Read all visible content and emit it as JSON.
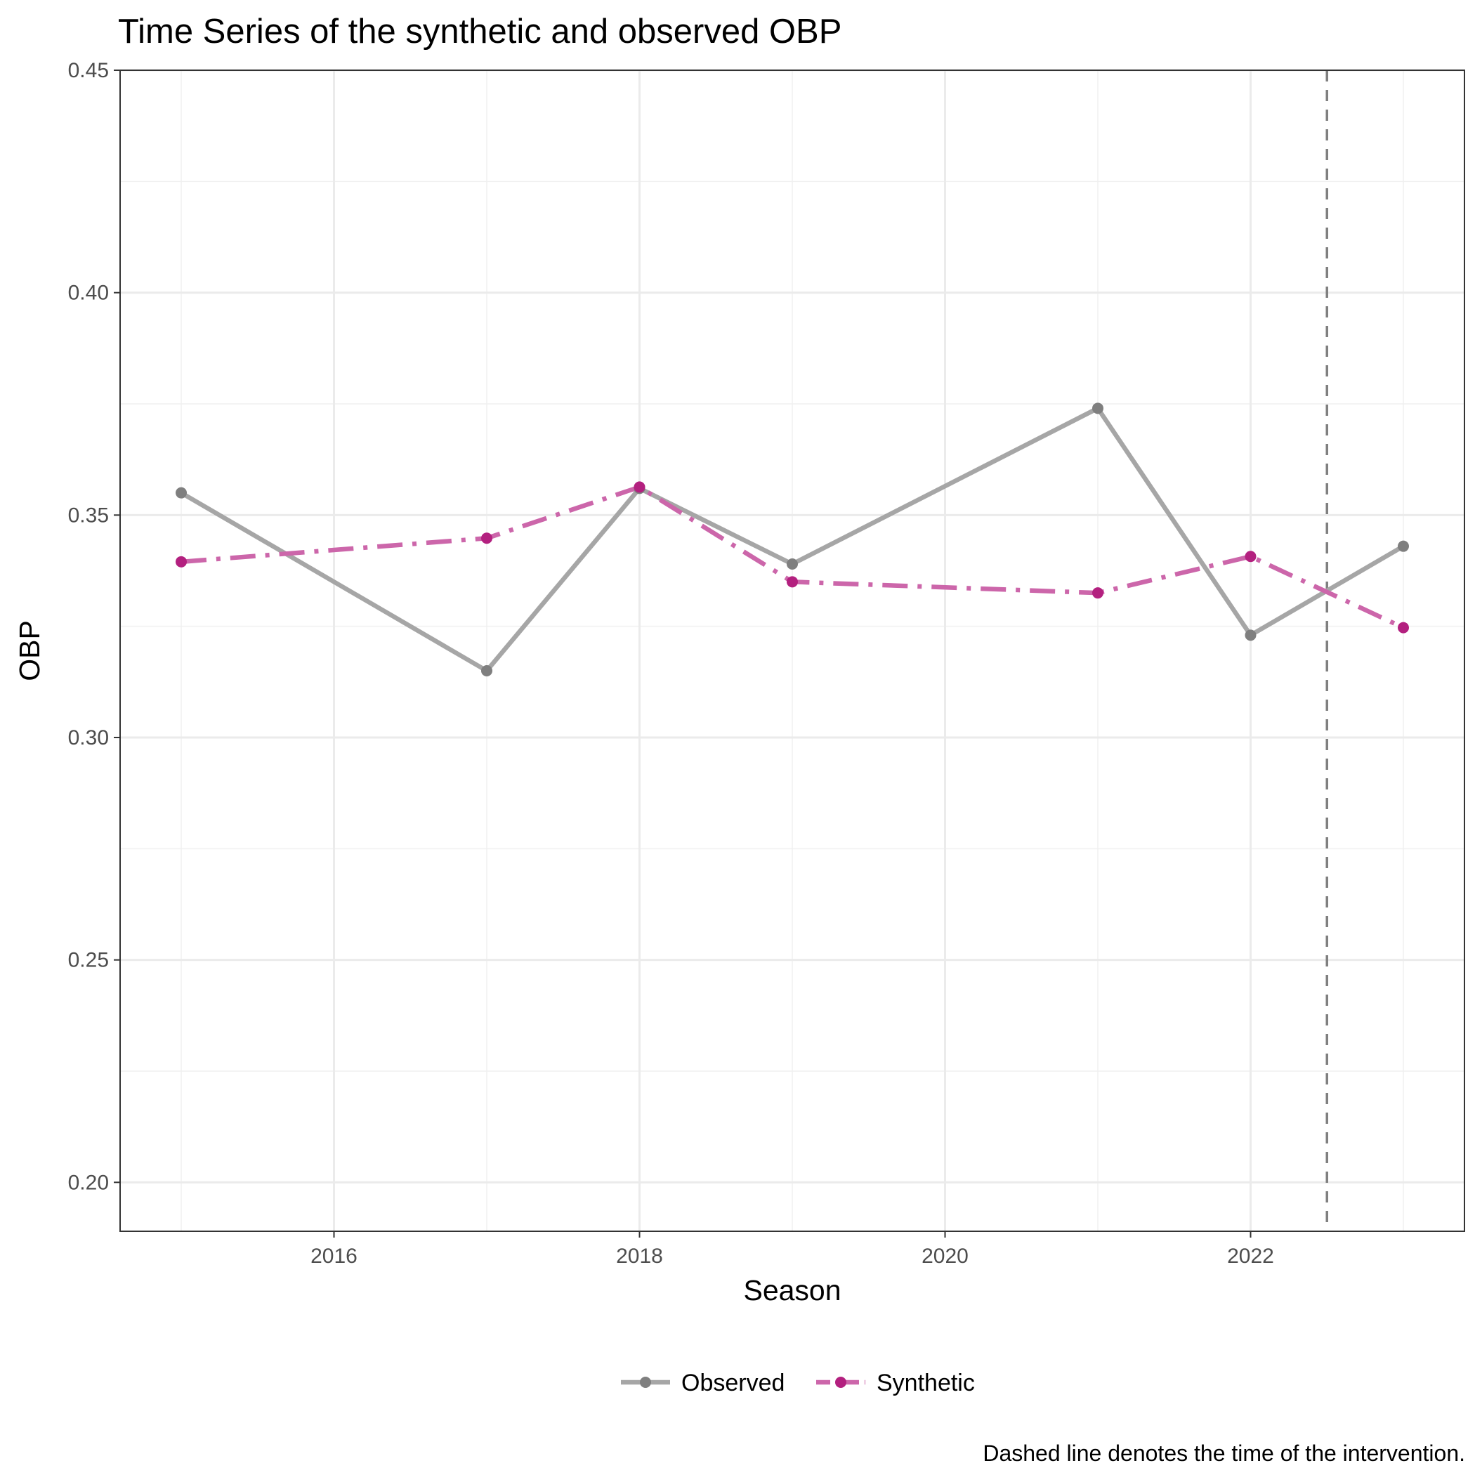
{
  "chart_data": {
    "type": "line",
    "title": "Time Series of the synthetic and observed OBP",
    "xlabel": "Season",
    "ylabel": "OBP",
    "caption": "Dashed line denotes the time of the intervention.",
    "x": [
      2015,
      2017,
      2018,
      2019,
      2021,
      2022,
      2023
    ],
    "xlim": [
      2014.6,
      2023.4
    ],
    "ylim": [
      0.189,
      0.45
    ],
    "x_ticks": [
      2016,
      2018,
      2020,
      2022
    ],
    "x_tick_labels": [
      "2016",
      "2018",
      "2020",
      "2022"
    ],
    "x_minor": [
      2015,
      2017,
      2019,
      2021,
      2023
    ],
    "y_ticks": [
      0.2,
      0.25,
      0.3,
      0.35,
      0.4,
      0.45
    ],
    "y_tick_labels": [
      "0.20",
      "0.25",
      "0.30",
      "0.35",
      "0.40",
      "0.45"
    ],
    "y_minor": [
      0.225,
      0.275,
      0.325,
      0.375,
      0.425
    ],
    "intervention_x": 2022.5,
    "grid": true,
    "legend_position": "bottom",
    "series": [
      {
        "name": "Observed",
        "values": [
          0.355,
          0.315,
          0.356,
          0.339,
          0.374,
          0.323,
          0.343
        ],
        "line_color": "#a6a6a6",
        "point_color": "#7f7f7f",
        "line_style": "solid"
      },
      {
        "name": "Synthetic",
        "values": [
          0.3395,
          0.3448,
          0.3563,
          0.335,
          0.3325,
          0.3407,
          0.3247
        ],
        "line_color": "#cc66aa",
        "point_color": "#b3207f",
        "line_style": "dotdash"
      }
    ]
  }
}
